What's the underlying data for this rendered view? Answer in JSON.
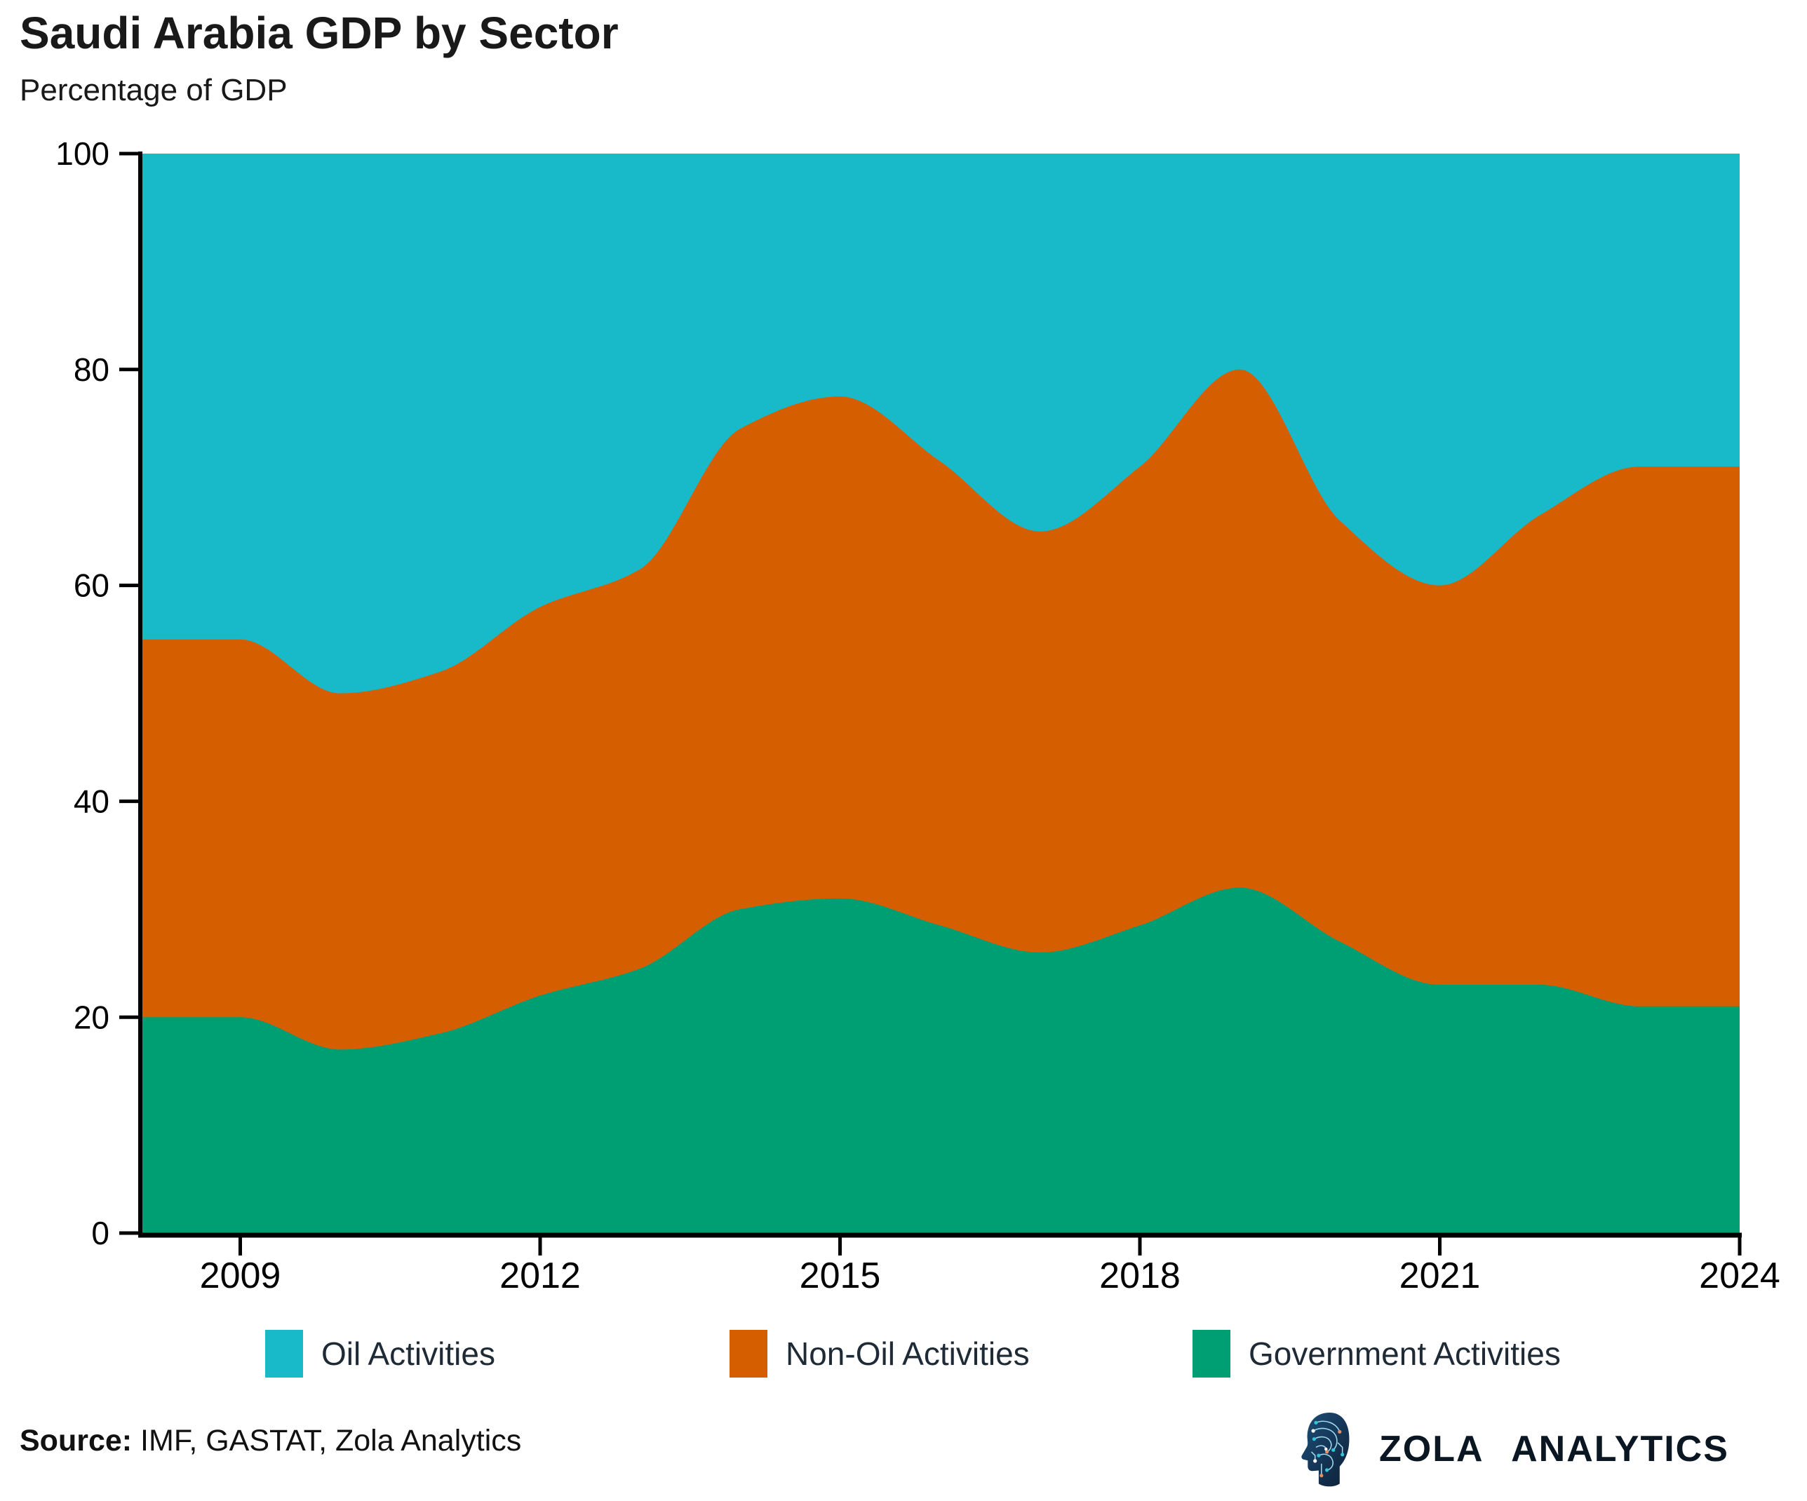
{
  "chart_data": {
    "type": "area",
    "stacked": true,
    "title": "Saudi Arabia GDP by Sector",
    "subtitle": "Percentage of GDP",
    "x": [
      2008,
      2009,
      2010,
      2011,
      2012,
      2013,
      2014,
      2015,
      2016,
      2017,
      2018,
      2019,
      2020,
      2021,
      2022,
      2023,
      2024
    ],
    "series": [
      {
        "name": "Oil Activities",
        "color": "#18b9c9",
        "values": [
          45,
          45,
          50,
          48,
          42,
          38.5,
          25.5,
          22.5,
          28.5,
          35,
          29,
          20,
          34,
          40,
          33.5,
          29,
          29
        ]
      },
      {
        "name": "Non-Oil Activities",
        "color": "#d55e00",
        "values": [
          35,
          35,
          33,
          33.5,
          36,
          37,
          44.5,
          46.5,
          43,
          39,
          42.5,
          48,
          39,
          37,
          43.5,
          50,
          50
        ]
      },
      {
        "name": "Government Activities",
        "color": "#009e73",
        "values": [
          20,
          20,
          17,
          18.5,
          22,
          24.5,
          30,
          31,
          28.5,
          26,
          28.5,
          32,
          27,
          23,
          23,
          21,
          21
        ]
      }
    ],
    "stack_order_bottom_to_top": [
      "Government Activities",
      "Non-Oil Activities",
      "Oil Activities"
    ],
    "xlabel": "",
    "ylabel": "",
    "ylim": [
      0,
      100
    ],
    "y_ticks": [
      0,
      20,
      40,
      60,
      80,
      100
    ],
    "x_ticks": [
      2009,
      2012,
      2015,
      2018,
      2021,
      2024
    ],
    "grid": false,
    "legend_position": "bottom",
    "axis_color": "#000000",
    "tick_label_color": "#000000"
  },
  "footer": {
    "source_label": "Source:",
    "source_text": " IMF, GASTAT, Zola Analytics"
  },
  "logo": {
    "text": "ZOLA ANALYTICS",
    "icon": "circuit-head-icon",
    "head_color": "#16395c",
    "circuit_color": "#9fd8ea",
    "node_color": "#35c3da",
    "accent_node_color": "#e98b63"
  }
}
